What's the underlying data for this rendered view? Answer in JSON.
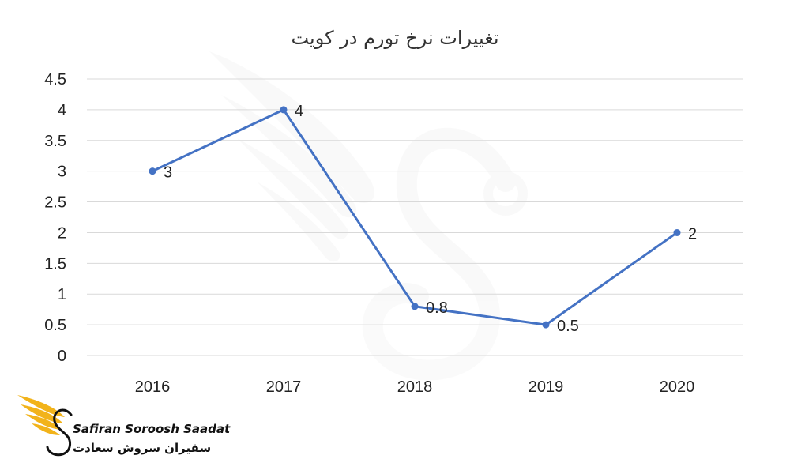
{
  "chart_data": {
    "type": "line",
    "title": "تغییرات نرخ تورم در کویت",
    "xlabel": "",
    "ylabel": "",
    "categories": [
      "2016",
      "2017",
      "2018",
      "2019",
      "2020"
    ],
    "series": [
      {
        "values": [
          3,
          4,
          0.8,
          0.5,
          2
        ],
        "data_labels": [
          "3",
          "4",
          "0.8",
          "0.5",
          "2"
        ],
        "color": "#4472c4"
      }
    ],
    "ylim": [
      0,
      4.5
    ],
    "y_ticks": [
      "0",
      "0.5",
      "1",
      "1.5",
      "2",
      "2.5",
      "3",
      "3.5",
      "4",
      "4.5"
    ],
    "grid": true,
    "legend": "none"
  },
  "branding": {
    "name_en": "Safiran Soroosh Saadat",
    "name_fa": "سفیران سروش سعادت",
    "accent_color": "#f2b31a",
    "watermark_icon": "wing-s-logo-icon"
  }
}
